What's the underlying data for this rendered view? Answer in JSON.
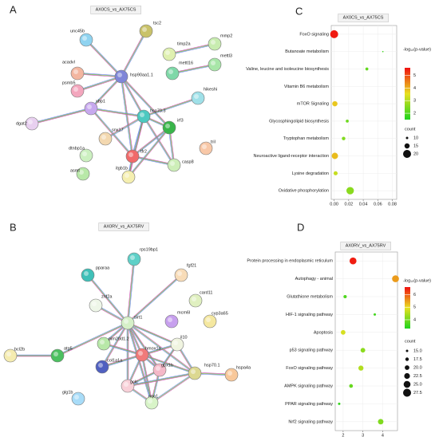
{
  "panel_labels": [
    "A",
    "B",
    "C",
    "D"
  ],
  "networks": [
    {
      "title": "AX0CS_vs_AX75CS",
      "nodes": [
        "unc45b",
        "tsc2",
        "timp2a",
        "mmp2",
        "acadvl",
        "hsp90aa1.1",
        "mettl16",
        "mettl3",
        "psmb5",
        "xbp1",
        "hikeshi",
        "hsp70.3",
        "dgat2",
        "irf3",
        "snx17",
        "dtnbp1a",
        "tfr2",
        "tril",
        "casp8",
        "asmt",
        "itgb1b"
      ]
    },
    {
      "title": "AX0RV_vs_AX75RV",
      "nodes": [
        "rps19bp1",
        "fgf21",
        "pparaa",
        "card11",
        "znf2a",
        "mcm6l",
        "cyp3a65",
        "sirt1",
        "bcl2b",
        "atg5",
        "pim20d1.2",
        "il10",
        "hmox1a",
        "col1a1a",
        "gpx1b",
        "hsp70.1",
        "hspa4a",
        "gclc",
        "glg1b",
        "nqo1"
      ]
    }
  ],
  "chart_data": [
    {
      "type": "dot",
      "title": "AX0CS_vs_AX75CS",
      "categories": [
        "FoxO signaling",
        "Butanoate metabolism",
        "Valine, leucine and isoleucine biosynthesis",
        "Vitamin B6 metabolism",
        "mTOR Signaling",
        "Glycosphingolipid biosynthesis",
        "Tryptophan metabolism",
        "Neuroactive ligand-receptor interaction",
        "Lysine degradation",
        "Oxidative phosphorylation"
      ],
      "values": [
        0.0,
        0.067,
        0.045,
        0.085,
        0.001,
        0.018,
        0.013,
        0.001,
        0.002,
        0.022
      ],
      "color_values": [
        5.5,
        1.8,
        2.2,
        1.5,
        3.8,
        2.3,
        2.5,
        3.9,
        3.2,
        2.6
      ],
      "counts": [
        20,
        8,
        11,
        6,
        15,
        11,
        12,
        17,
        13,
        19
      ],
      "xlim": [
        -0.004,
        0.086
      ],
      "xticks": [
        {
          "value": 0,
          "label": "0.00"
        },
        0.02,
        0.04,
        0.06,
        0.08
      ],
      "color_title": "-log₁₀(p-value)",
      "colorlim": [
        1.5,
        5.6
      ],
      "colorticks": [
        2,
        3,
        4,
        5
      ],
      "size_title": "count",
      "sizeticks": [
        10,
        15,
        20
      ],
      "grid": true
    },
    {
      "type": "dot",
      "title": "AX0RV_vs_AX75RV",
      "categories": [
        "Protein processing in endoplasmic reticulum",
        "Autophagy - animal",
        "Glutathione metabolism",
        "HIF-1 signaling pathway",
        "Apoptosis",
        "p53 signaling pathway",
        "FoxO signaling pathway",
        "AMPK signaling pathway",
        "PPAR signaling pathway",
        "Nrf2 signaling pathway"
      ],
      "values": [
        2.5,
        4.65,
        2.1,
        3.6,
        2.0,
        3.0,
        2.9,
        2.4,
        1.8,
        3.9
      ],
      "color_values": [
        6.5,
        5.5,
        3.7,
        3.6,
        4.8,
        4.2,
        4.5,
        3.9,
        3.5,
        4.1
      ],
      "counts": [
        25,
        25,
        17,
        15,
        20,
        20,
        21,
        18,
        15,
        22
      ],
      "xlim": [
        1.6,
        4.75
      ],
      "xticks": [
        2,
        3,
        4
      ],
      "color_title": "-log₁₀(p-value)",
      "colorlim": [
        3.3,
        6.6
      ],
      "colorticks": [
        4,
        5,
        6
      ],
      "size_title": "count",
      "sizeticks": [
        {
          "value": 15,
          "label": "15.0"
        },
        17.5,
        {
          "value": 20,
          "label": "20.0"
        },
        22.5,
        {
          "value": 25,
          "label": "25.0"
        },
        27.5
      ],
      "grid": true
    }
  ]
}
